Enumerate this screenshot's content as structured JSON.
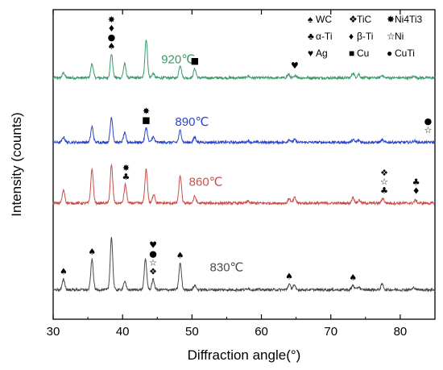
{
  "chart_data": {
    "type": "line",
    "xlabel": "Diffraction angle(°)",
    "ylabel": "Intensity (counts)",
    "xlim": [
      30,
      85
    ],
    "x_ticks": [
      "30",
      "40",
      "50",
      "60",
      "70",
      "80"
    ],
    "y_ticks_shown": false,
    "grid": false,
    "legend": {
      "position": "top-right",
      "entries": [
        {
          "symbol": "♠",
          "phase": "WC"
        },
        {
          "symbol": "❖",
          "phase": "TiC"
        },
        {
          "symbol": "✸",
          "phase": "Ni4Ti3"
        },
        {
          "symbol": "♣",
          "phase": "α-Ti"
        },
        {
          "symbol": "♦",
          "phase": "β-Ti"
        },
        {
          "symbol": "☆",
          "phase": "Ni"
        },
        {
          "symbol": "♥",
          "phase": "Ag"
        },
        {
          "symbol": "■",
          "phase": "Cu"
        },
        {
          "symbol": "●",
          "phase": "CuTi"
        }
      ]
    },
    "series": [
      {
        "name": "920℃",
        "color": "#3a9a6a",
        "baseline": 6.55,
        "peaks": [
          [
            31.5,
            0.14
          ],
          [
            35.6,
            0.38
          ],
          [
            38.4,
            0.65
          ],
          [
            40.3,
            0.38
          ],
          [
            43.4,
            1.05
          ],
          [
            44.4,
            0.12
          ],
          [
            48.3,
            0.35
          ],
          [
            50.4,
            0.25
          ],
          [
            58.1,
            0.05
          ],
          [
            63.9,
            0.09
          ],
          [
            65.0,
            0.06
          ],
          [
            73.2,
            0.13
          ],
          [
            74.0,
            0.1
          ],
          [
            77.4,
            0.07
          ],
          [
            82.0,
            0.05
          ]
        ],
        "annotations": [
          {
            "x": 38.4,
            "symbols": [
              "✸",
              "♦",
              "●",
              "♠"
            ]
          },
          {
            "x": 50.4,
            "symbols": [
              "■"
            ]
          },
          {
            "x": 64.8,
            "symbols": [
              "♥"
            ]
          }
        ]
      },
      {
        "name": "890℃",
        "color": "#2a45c8",
        "baseline": 4.8,
        "peaks": [
          [
            31.5,
            0.14
          ],
          [
            35.6,
            0.42
          ],
          [
            38.4,
            0.68
          ],
          [
            40.3,
            0.25
          ],
          [
            43.4,
            0.4
          ],
          [
            44.4,
            0.15
          ],
          [
            48.3,
            0.32
          ],
          [
            50.4,
            0.14
          ],
          [
            58.1,
            0.04
          ],
          [
            64.0,
            0.08
          ],
          [
            64.8,
            0.07
          ],
          [
            73.2,
            0.07
          ],
          [
            74.0,
            0.06
          ],
          [
            77.4,
            0.06
          ],
          [
            82.0,
            0.04
          ]
        ],
        "annotations": [
          {
            "x": 43.4,
            "symbols": [
              "✸",
              "■"
            ]
          },
          {
            "x": 84.0,
            "symbols": [
              "●",
              "☆"
            ]
          }
        ]
      },
      {
        "name": "860℃",
        "color": "#c8504a",
        "baseline": 3.15,
        "peaks": [
          [
            31.5,
            0.35
          ],
          [
            35.6,
            0.92
          ],
          [
            38.4,
            1.02
          ],
          [
            40.4,
            0.5
          ],
          [
            43.4,
            0.92
          ],
          [
            44.5,
            0.25
          ],
          [
            48.3,
            0.75
          ],
          [
            50.4,
            0.18
          ],
          [
            58.1,
            0.05
          ],
          [
            64.0,
            0.13
          ],
          [
            64.8,
            0.15
          ],
          [
            73.2,
            0.16
          ],
          [
            74.1,
            0.08
          ],
          [
            77.5,
            0.13
          ],
          [
            82.2,
            0.08
          ]
        ],
        "annotations": [
          {
            "x": 40.5,
            "symbols": [
              "✸",
              "♣"
            ]
          },
          {
            "x": 77.7,
            "symbols": [
              "❖",
              "☆",
              "♣"
            ]
          },
          {
            "x": 82.3,
            "symbols": [
              "♣",
              "♦"
            ]
          }
        ]
      },
      {
        "name": "830℃",
        "color": "#4a4a4a",
        "baseline": 0.8,
        "peaks": [
          [
            31.5,
            0.28
          ],
          [
            35.6,
            0.82
          ],
          [
            38.4,
            1.42
          ],
          [
            40.3,
            0.22
          ],
          [
            43.3,
            0.82
          ],
          [
            44.4,
            0.28
          ],
          [
            48.3,
            0.72
          ],
          [
            50.4,
            0.12
          ],
          [
            58.1,
            0.04
          ],
          [
            64.0,
            0.15
          ],
          [
            64.7,
            0.12
          ],
          [
            73.2,
            0.12
          ],
          [
            74.0,
            0.08
          ],
          [
            77.4,
            0.15
          ],
          [
            82.0,
            0.06
          ]
        ],
        "annotations": [
          {
            "x": 31.5,
            "symbols": [
              "♠"
            ]
          },
          {
            "x": 35.6,
            "symbols": [
              "♠"
            ]
          },
          {
            "x": 44.4,
            "symbols": [
              "♥",
              "●",
              "☆",
              "❖"
            ]
          },
          {
            "x": 48.3,
            "symbols": [
              "♠"
            ]
          },
          {
            "x": 64.0,
            "symbols": [
              "♠"
            ]
          },
          {
            "x": 73.2,
            "symbols": [
              "♠"
            ]
          }
        ]
      }
    ]
  }
}
